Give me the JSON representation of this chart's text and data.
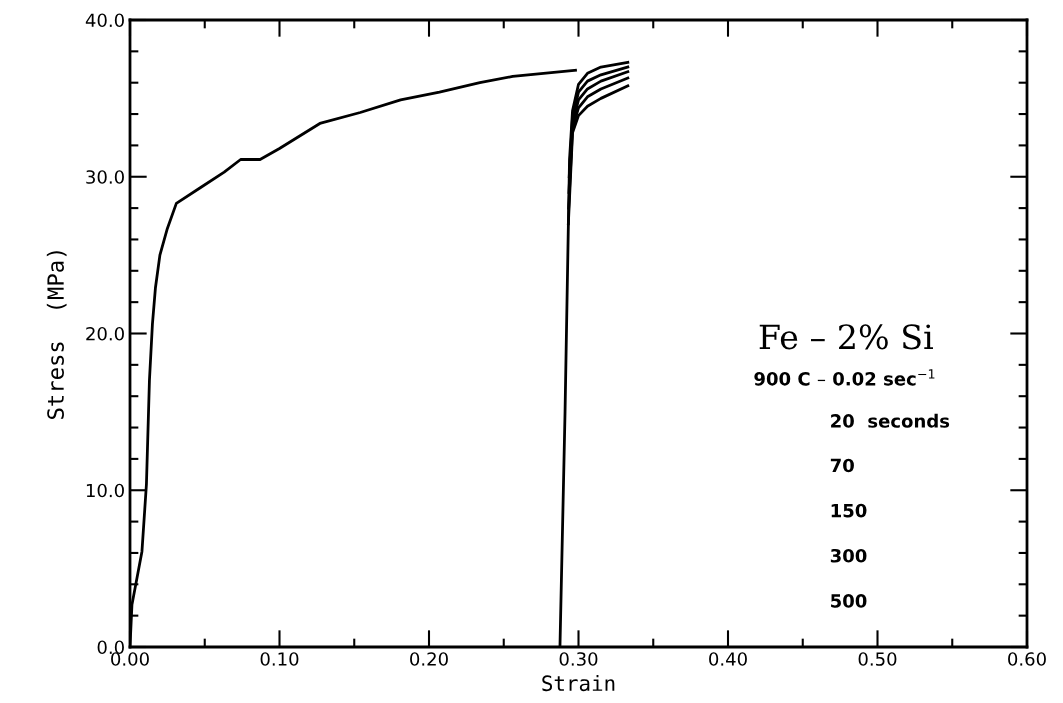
{
  "chart_data": {
    "type": "line",
    "xlabel": "Strain",
    "ylabel": "Stress  (MPa)",
    "xlim": [
      0,
      0.6
    ],
    "ylim": [
      0,
      40
    ],
    "xticks": [
      {
        "value": 0,
        "label": "0.00"
      },
      {
        "value": 0.1,
        "label": "0.10"
      },
      {
        "value": 0.2,
        "label": "0.20"
      },
      {
        "value": 0.3,
        "label": "0.30"
      },
      {
        "value": 0.4,
        "label": "0.40"
      },
      {
        "value": 0.5,
        "label": "0.50"
      },
      {
        "value": 0.6,
        "label": "0.60"
      }
    ],
    "yticks": [
      {
        "value": 0,
        "label": "0.0"
      },
      {
        "value": 10,
        "label": "10.0"
      },
      {
        "value": 20,
        "label": "20.0"
      },
      {
        "value": 30,
        "label": "30.0"
      },
      {
        "value": 40,
        "label": "40.0"
      }
    ],
    "grid": false,
    "legend": false,
    "marker": "none",
    "line_style": "solid",
    "series": [
      {
        "color": "#000000",
        "x": [
          0,
          0.0013,
          0.008,
          0.011,
          0.013,
          0.015,
          0.017,
          0.02,
          0.025,
          0.031,
          0.047,
          0.063,
          0.074,
          0.087,
          0.1,
          0.127,
          0.154,
          0.181,
          0.207,
          0.234,
          0.256,
          0.298
        ],
        "values": [
          0,
          2.7,
          6.1,
          10.4,
          17.0,
          20.6,
          22.9,
          25.0,
          26.7,
          28.3,
          29.3,
          30.3,
          31.1,
          31.1,
          31.8,
          33.4,
          34.1,
          34.9,
          35.4,
          36.0,
          36.4,
          36.8
        ]
      },
      {
        "color": "#000000",
        "x": [
          0.2876,
          0.291,
          0.294,
          0.296,
          0.3,
          0.306,
          0.315,
          0.333
        ],
        "values": [
          0,
          15,
          31.1,
          34.2,
          35.9,
          36.6,
          37.0,
          37.3
        ]
      },
      {
        "color": "#000000",
        "x": [
          0.2938,
          0.296,
          0.3,
          0.306,
          0.315,
          0.333
        ],
        "values": [
          30.0,
          33.8,
          35.4,
          36.1,
          36.5,
          37.0
        ]
      },
      {
        "color": "#000000",
        "x": [
          0.2936,
          0.296,
          0.3,
          0.306,
          0.315,
          0.333
        ],
        "values": [
          29.0,
          33.4,
          34.9,
          35.6,
          36.1,
          36.7
        ]
      },
      {
        "color": "#000000",
        "x": [
          0.2934,
          0.296,
          0.3,
          0.306,
          0.315,
          0.333
        ],
        "values": [
          28.0,
          33.1,
          34.4,
          35.1,
          35.6,
          36.3
        ]
      },
      {
        "color": "#000000",
        "x": [
          0.2932,
          0.296,
          0.3,
          0.306,
          0.315,
          0.333
        ],
        "values": [
          27.0,
          32.8,
          33.9,
          34.5,
          35.0,
          35.8
        ]
      }
    ],
    "annotations": [
      "Fe – 2% Si",
      "900 C – 0.02 sec$^{−1}$",
      "20  seconds",
      "70",
      "150",
      "300",
      "500"
    ]
  }
}
